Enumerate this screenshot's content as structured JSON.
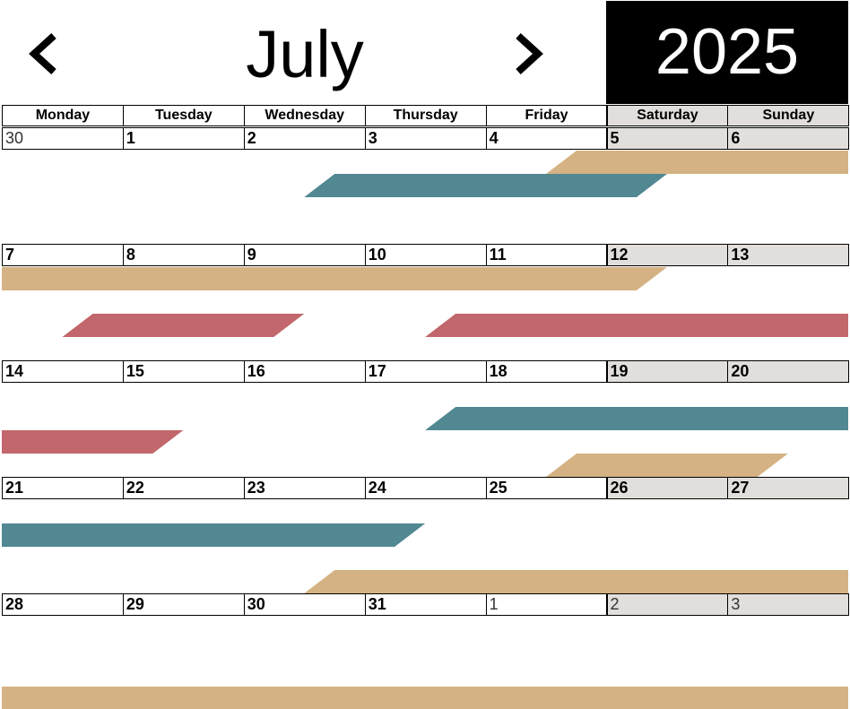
{
  "header": {
    "month": "July",
    "year": "2025",
    "prev_icon": "chevron-left-icon",
    "next_icon": "chevron-right-icon"
  },
  "weekdays": [
    "Monday",
    "Tuesday",
    "Wednesday",
    "Thursday",
    "Friday",
    "Saturday",
    "Sunday"
  ],
  "weeks": [
    [
      {
        "label": "30",
        "current": false
      },
      {
        "label": "1",
        "current": true
      },
      {
        "label": "2",
        "current": true
      },
      {
        "label": "3",
        "current": true
      },
      {
        "label": "4",
        "current": true
      },
      {
        "label": "5",
        "current": true
      },
      {
        "label": "6",
        "current": true
      }
    ],
    [
      {
        "label": "7",
        "current": true
      },
      {
        "label": "8",
        "current": true
      },
      {
        "label": "9",
        "current": true
      },
      {
        "label": "10",
        "current": true
      },
      {
        "label": "11",
        "current": true
      },
      {
        "label": "12",
        "current": true
      },
      {
        "label": "13",
        "current": true
      }
    ],
    [
      {
        "label": "14",
        "current": true
      },
      {
        "label": "15",
        "current": true
      },
      {
        "label": "16",
        "current": true
      },
      {
        "label": "17",
        "current": true
      },
      {
        "label": "18",
        "current": true
      },
      {
        "label": "19",
        "current": true
      },
      {
        "label": "20",
        "current": true
      }
    ],
    [
      {
        "label": "21",
        "current": true
      },
      {
        "label": "22",
        "current": true
      },
      {
        "label": "23",
        "current": true
      },
      {
        "label": "24",
        "current": true
      },
      {
        "label": "25",
        "current": true
      },
      {
        "label": "26",
        "current": true
      },
      {
        "label": "27",
        "current": true
      }
    ],
    [
      {
        "label": "28",
        "current": true
      },
      {
        "label": "29",
        "current": true
      },
      {
        "label": "30",
        "current": true
      },
      {
        "label": "31",
        "current": true
      },
      {
        "label": "1",
        "current": false
      },
      {
        "label": "2",
        "current": false
      },
      {
        "label": "3",
        "current": false
      }
    ]
  ],
  "colors": {
    "tan": "#d4b283",
    "teal": "#518891",
    "red": "#c2676b",
    "weekend": "#e2dedb",
    "year_bg": "#000000"
  },
  "events": [
    {
      "color": "tan",
      "week": 0,
      "lane": 0,
      "start_day": 4.5,
      "end_day": 7,
      "left_edge": "slant",
      "right_edge": "flush"
    },
    {
      "color": "teal",
      "week": 0,
      "lane": 1,
      "start_day": 2.5,
      "end_day": 5.5,
      "left_edge": "slant",
      "right_edge": "slant"
    },
    {
      "color": "tan",
      "week": 1,
      "lane": 0,
      "start_day": 0,
      "end_day": 5.5,
      "left_edge": "flush",
      "right_edge": "slant"
    },
    {
      "color": "red",
      "week": 1,
      "lane": 2,
      "start_day": 0.5,
      "end_day": 2.5,
      "left_edge": "slant",
      "right_edge": "slant"
    },
    {
      "color": "red",
      "week": 1,
      "lane": 2,
      "start_day": 3.5,
      "end_day": 7,
      "left_edge": "slant",
      "right_edge": "flush"
    },
    {
      "color": "teal",
      "week": 2,
      "lane": 1,
      "start_day": 3.5,
      "end_day": 7,
      "left_edge": "slant",
      "right_edge": "flush"
    },
    {
      "color": "red",
      "week": 2,
      "lane": 2,
      "start_day": 0,
      "end_day": 1.5,
      "left_edge": "flush",
      "right_edge": "slant"
    },
    {
      "color": "tan",
      "week": 2,
      "lane": 3,
      "start_day": 4.5,
      "end_day": 6.5,
      "left_edge": "slant",
      "right_edge": "slant"
    },
    {
      "color": "teal",
      "week": 3,
      "lane": 1,
      "start_day": 0,
      "end_day": 3.5,
      "left_edge": "flush",
      "right_edge": "slant"
    },
    {
      "color": "tan",
      "week": 3,
      "lane": 3,
      "start_day": 2.5,
      "end_day": 7,
      "left_edge": "slant",
      "right_edge": "flush"
    },
    {
      "color": "tan",
      "week": 4,
      "lane": 3,
      "start_day": 0,
      "end_day": 7,
      "left_edge": "flush",
      "right_edge": "flush"
    }
  ]
}
